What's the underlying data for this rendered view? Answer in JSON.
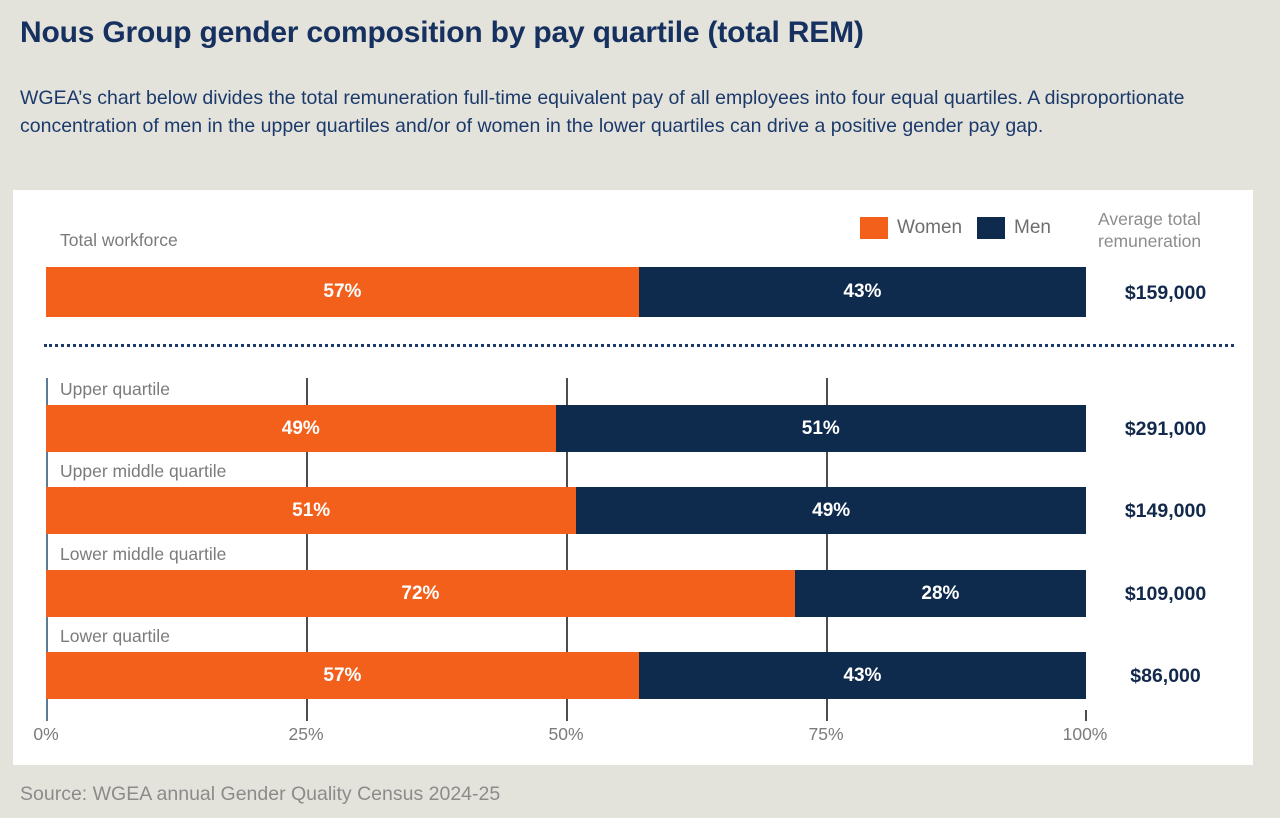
{
  "page": {
    "title": "Nous Group gender composition by pay quartile (total REM)",
    "subtitle": "WGEA’s chart below divides the total remuneration full-time equivalent pay of all employees into four equal quartiles. A disproportionate concentration of men in the upper quartiles and/or of women in the lower quartiles can drive a positive gender pay gap.",
    "source": "Source: WGEA annual Gender Quality Census 2024-25"
  },
  "colors": {
    "women": "#f2601c",
    "men": "#0e2a4d",
    "background": "#e4e3db",
    "panel": "#ffffff",
    "title_navy": "#16315f",
    "value_navy": "#13294b",
    "label_gray": "#7b7b7b"
  },
  "legend": {
    "women_label": "Women",
    "men_label": "Men",
    "avg_header_line1": "Average total",
    "avg_header_line2": "remuneration"
  },
  "chart_data": {
    "type": "bar",
    "orientation": "horizontal",
    "stacked": true,
    "unit": "percent",
    "xlim": [
      0,
      100
    ],
    "x_ticks": [
      "0%",
      "25%",
      "50%",
      "75%",
      "100%"
    ],
    "series_names": [
      "Women",
      "Men"
    ],
    "total_row": {
      "label": "Total workforce",
      "women": 57,
      "men": 43,
      "women_label": "57%",
      "men_label": "43%",
      "avg": "$159,000"
    },
    "rows": [
      {
        "label": "Upper quartile",
        "women": 49,
        "men": 51,
        "women_label": "49%",
        "men_label": "51%",
        "avg": "$291,000"
      },
      {
        "label": "Upper middle quartile",
        "women": 51,
        "men": 49,
        "women_label": "51%",
        "men_label": "49%",
        "avg": "$149,000"
      },
      {
        "label": "Lower middle quartile",
        "women": 72,
        "men": 28,
        "women_label": "72%",
        "men_label": "28%",
        "avg": "$109,000"
      },
      {
        "label": "Lower quartile",
        "women": 57,
        "men": 43,
        "women_label": "57%",
        "men_label": "43%",
        "avg": "$86,000"
      }
    ]
  }
}
